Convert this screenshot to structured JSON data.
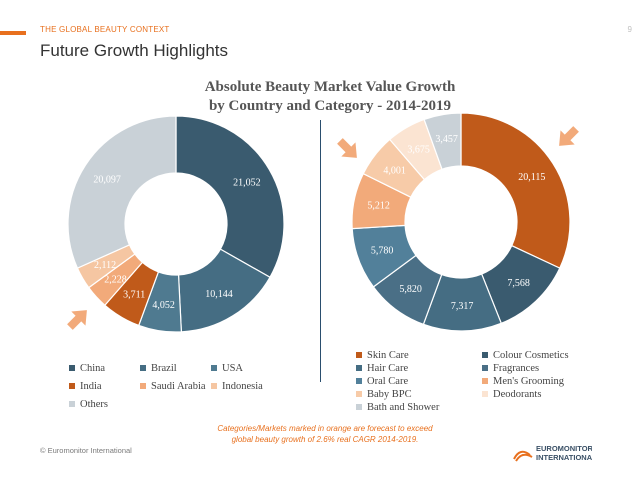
{
  "header": {
    "section": "THE GLOBAL BEAUTY CONTEXT",
    "page_number": "9",
    "title": "Future Growth Highlights"
  },
  "chart_title": {
    "line1": "Absolute Beauty Market Value Growth",
    "line2": "by Country and Category - 2014-2019"
  },
  "chart_data": [
    {
      "type": "pie",
      "categories": [
        "China",
        "Brazil",
        "USA",
        "India",
        "Saudi Arabia",
        "Indonesia",
        "Others"
      ],
      "values": [
        21052,
        10144,
        4052,
        3711,
        2228,
        2112,
        20097
      ],
      "labels": [
        "21,052",
        "10,144",
        "4,052",
        "3,711",
        "2,228",
        "2,112",
        "20,097"
      ],
      "colors": [
        "#3a5b6f",
        "#456d83",
        "#4f7a90",
        "#c05a1a",
        "#f2aa7a",
        "#f5c6a2",
        "#c9d1d7"
      ],
      "label_colors": [
        "#ffffff",
        "#ffffff",
        "#ffffff",
        "#ffffff",
        "#ffffff",
        "#ffffff",
        "#ffffff"
      ],
      "legend_placement": "bottom",
      "highlighted": [
        "India",
        "Saudi Arabia",
        "Indonesia"
      ]
    },
    {
      "type": "pie",
      "categories": [
        "Skin Care",
        "Colour Cosmetics",
        "Hair Care",
        "Fragrances",
        "Oral Care",
        "Men's Grooming",
        "Baby BPC",
        "Deodorants",
        "Bath and Shower"
      ],
      "values": [
        20115,
        7568,
        7317,
        5820,
        5780,
        5212,
        4001,
        3675,
        3457
      ],
      "labels": [
        "20,115",
        "7,568",
        "7,317",
        "5,820",
        "5,780",
        "5,212",
        "4,001",
        "3,675",
        "3,457"
      ],
      "colors": [
        "#c05a1a",
        "#3a5b6f",
        "#456d83",
        "#4a6f86",
        "#52809a",
        "#f2aa7a",
        "#f7cba8",
        "#fbe4d2",
        "#c9d1d7"
      ],
      "label_colors": [
        "#ffffff",
        "#ffffff",
        "#ffffff",
        "#ffffff",
        "#ffffff",
        "#ffffff",
        "#ffffff",
        "#ffffff",
        "#ffffff"
      ],
      "legend_placement": "bottom",
      "highlighted": [
        "Skin Care",
        "Men's Grooming",
        "Baby BPC",
        "Deodorants"
      ]
    }
  ],
  "legend_left": [
    {
      "label": "China",
      "color": "#3a5b6f"
    },
    {
      "label": "Brazil",
      "color": "#456d83"
    },
    {
      "label": "USA",
      "color": "#4f7a90"
    },
    {
      "label": "India",
      "color": "#c05a1a"
    },
    {
      "label": "Saudi Arabia",
      "color": "#f2aa7a"
    },
    {
      "label": "Indonesia",
      "color": "#f5c6a2"
    },
    {
      "label": "Others",
      "color": "#c9d1d7"
    }
  ],
  "legend_right": [
    {
      "label": "Skin Care",
      "color": "#c05a1a"
    },
    {
      "label": "Colour Cosmetics",
      "color": "#3a5b6f"
    },
    {
      "label": "Hair Care",
      "color": "#456d83"
    },
    {
      "label": "Fragrances",
      "color": "#4a6f86"
    },
    {
      "label": "Oral Care",
      "color": "#52809a"
    },
    {
      "label": "Men's Grooming",
      "color": "#f2aa7a"
    },
    {
      "label": "Baby BPC",
      "color": "#f7cba8"
    },
    {
      "label": "Deodorants",
      "color": "#fbe4d2"
    },
    {
      "label": "Bath and Shower",
      "color": "#c9d1d7"
    }
  ],
  "footnote": {
    "line1": "Categories/Markets marked in orange are forecast to exceed",
    "line2": "global beauty growth of 2.6% real CAGR 2014-2019."
  },
  "footer": {
    "copyright": "© Euromonitor International",
    "logo_line1": "EUROMONITOR",
    "logo_line2": "INTERNATIONAL"
  },
  "arrow_color": "#f2aa7a"
}
